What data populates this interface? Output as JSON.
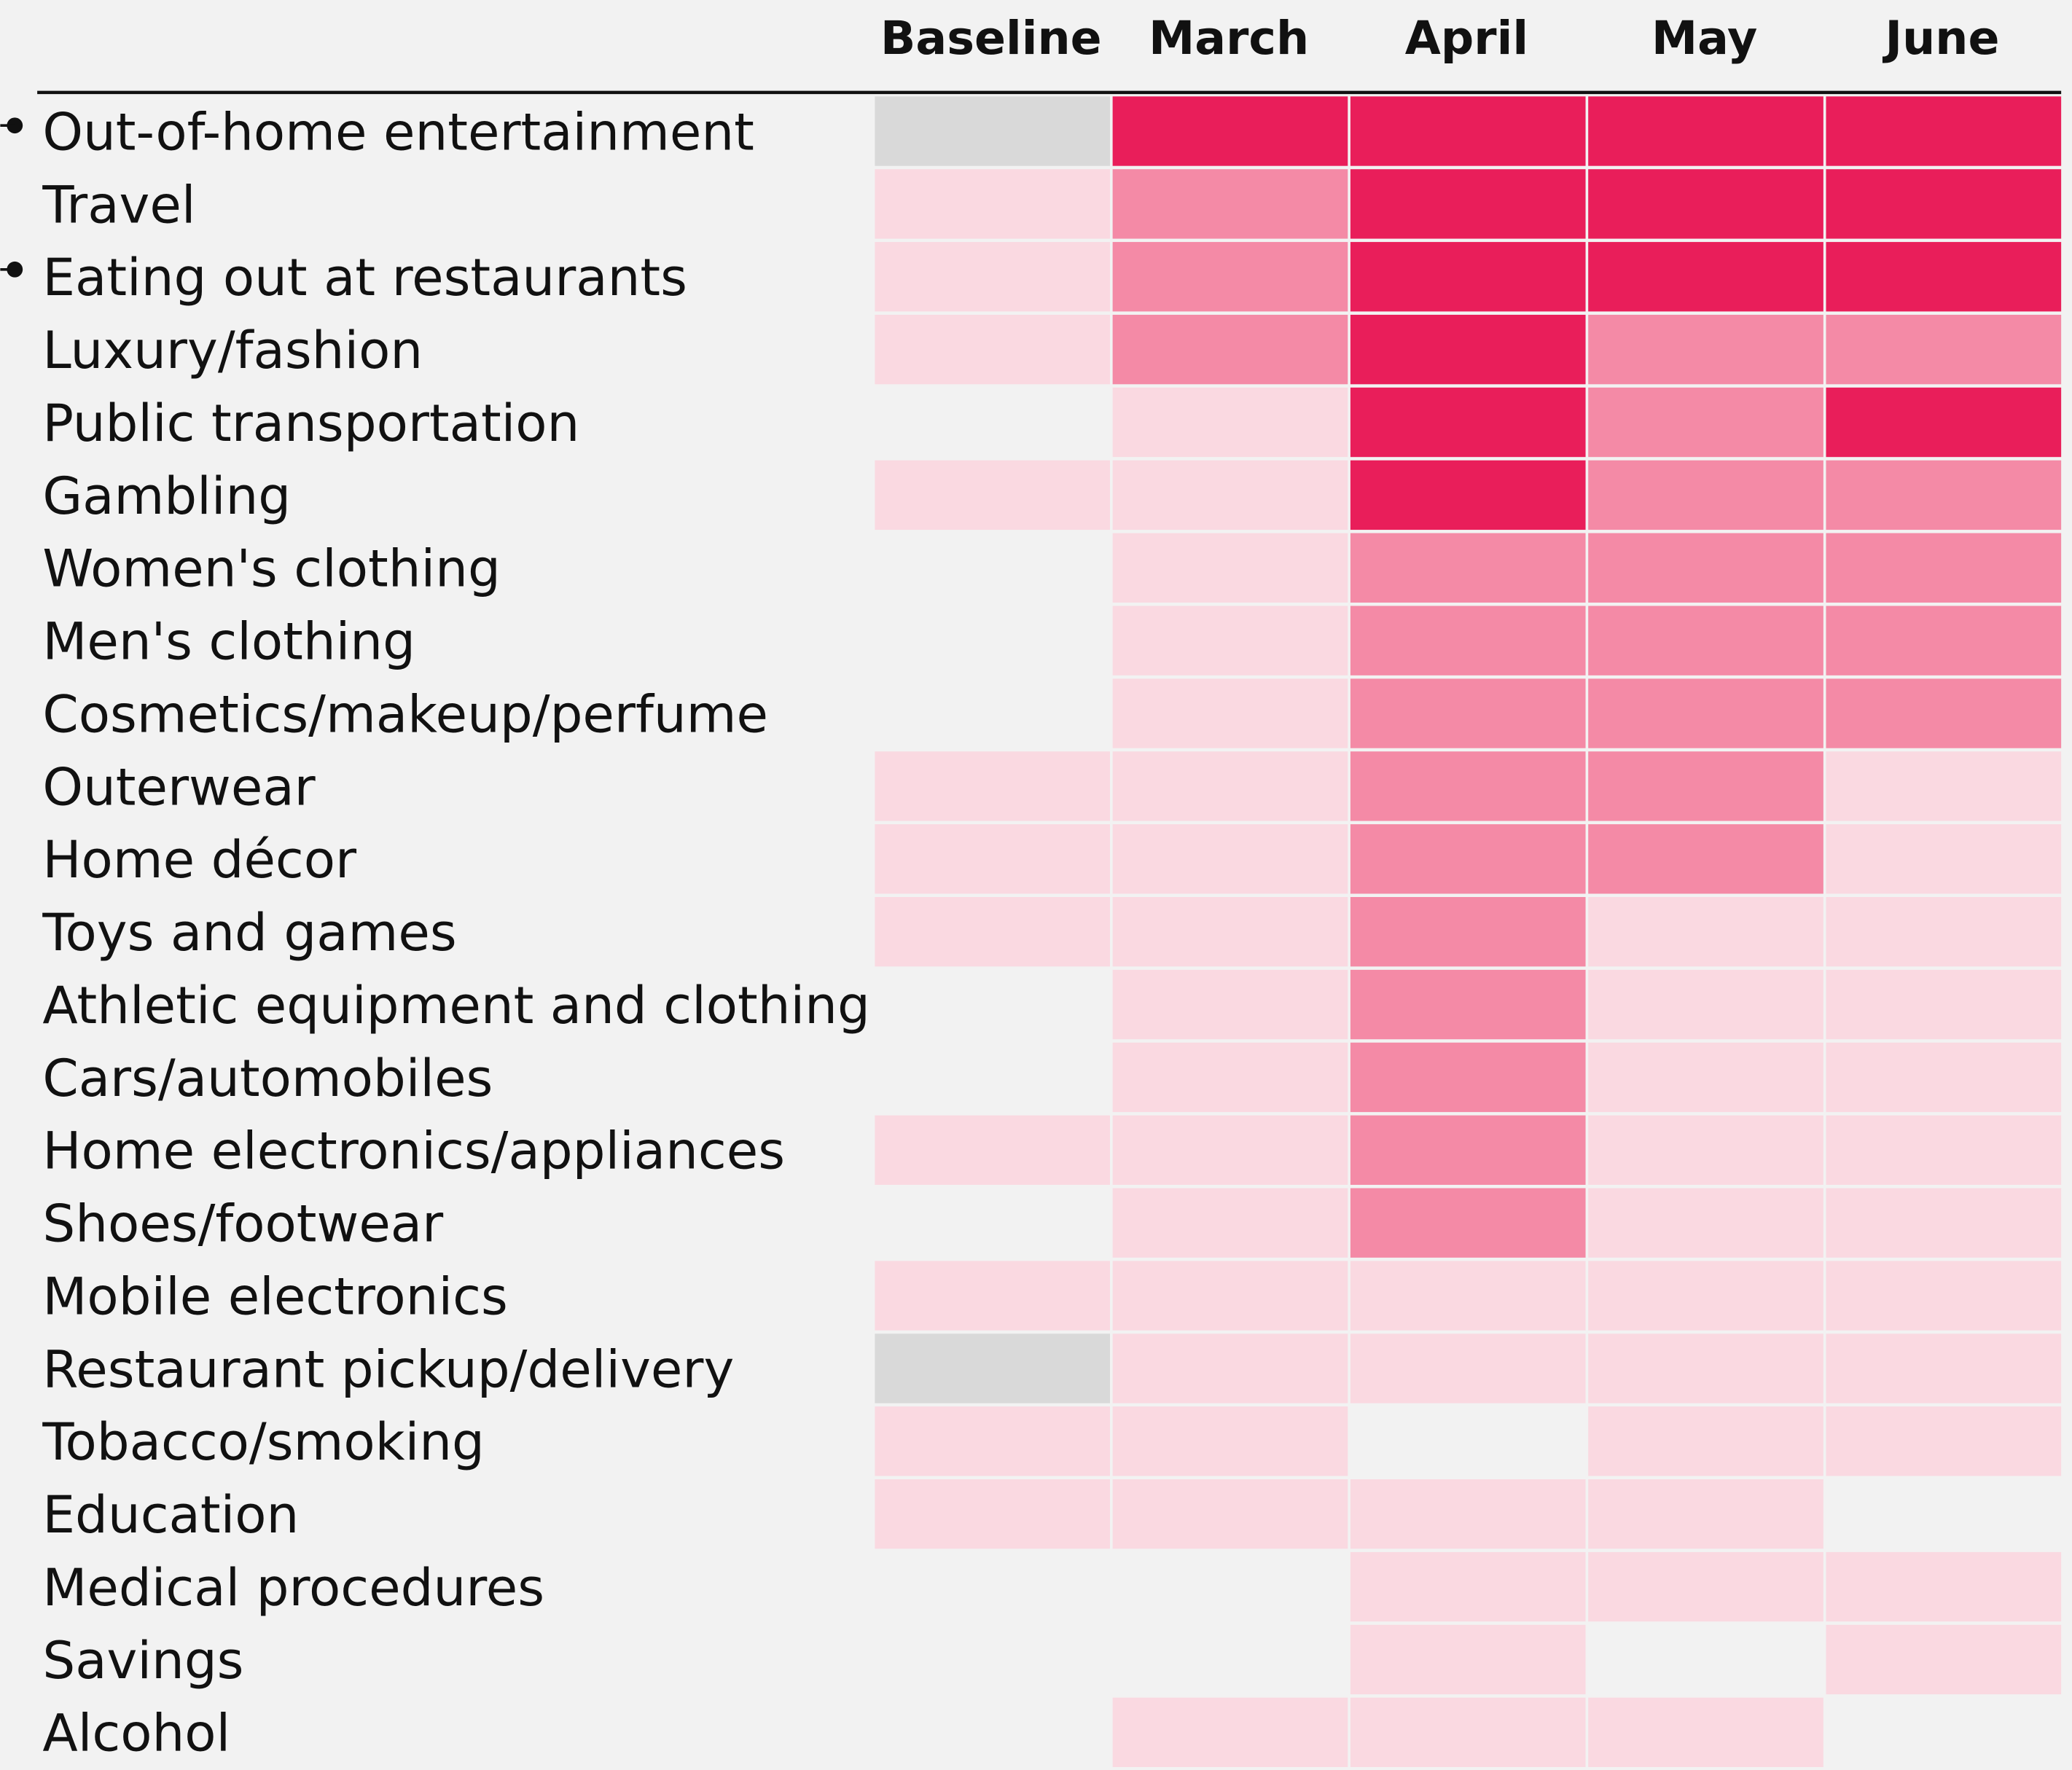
{
  "chart_data": {
    "type": "heatmap",
    "columns": [
      "Baseline",
      "March",
      "April",
      "May",
      "June"
    ],
    "rows": [
      "Out-of-home entertainment",
      "Travel",
      "Eating out at restaurants",
      "Luxury/fashion",
      "Public transportation",
      "Gambling",
      "Women's clothing",
      "Men's clothing",
      "Cosmetics/makeup/perfume",
      "Outerwear",
      "Home décor",
      "Toys and games",
      "Athletic equipment and clothing",
      "Cars/automobiles",
      "Home electronics/appliances",
      "Shoes/footwear",
      "Mobile electronics",
      "Restaurant pickup/delivery",
      "Tobacco/smoking",
      "Education",
      "Medical procedures",
      "Savings",
      "Alcohol"
    ],
    "colors": [
      [
        "#d9d9d9",
        "#e91e5a",
        "#e91e5a",
        "#e91e5a",
        "#e91e5a"
      ],
      [
        "#fad9e1",
        "#f48aa6",
        "#e91e5a",
        "#e91e5a",
        "#e91e5a"
      ],
      [
        "#fad9e1",
        "#f48aa6",
        "#e91e5a",
        "#e91e5a",
        "#e91e5a"
      ],
      [
        "#fad9e1",
        "#f48aa6",
        "#e91e5a",
        "#f48aa6",
        "#f48aa6"
      ],
      [
        null,
        "#fad9e1",
        "#e91e5a",
        "#f48aa6",
        "#e91e5a"
      ],
      [
        "#fad9e1",
        "#fad9e1",
        "#e91e5a",
        "#f48aa6",
        "#f48aa6"
      ],
      [
        null,
        "#fad9e1",
        "#f48aa6",
        "#f48aa6",
        "#f48aa6"
      ],
      [
        null,
        "#fad9e1",
        "#f48aa6",
        "#f48aa6",
        "#f48aa6"
      ],
      [
        null,
        "#fad9e1",
        "#f48aa6",
        "#f48aa6",
        "#f48aa6"
      ],
      [
        "#fad9e1",
        "#fad9e1",
        "#f48aa6",
        "#f48aa6",
        "#fad9e1"
      ],
      [
        "#fad9e1",
        "#fad9e1",
        "#f48aa6",
        "#f48aa6",
        "#fad9e1"
      ],
      [
        "#fad9e1",
        "#fad9e1",
        "#f48aa6",
        "#fad9e1",
        "#fad9e1"
      ],
      [
        null,
        "#fad9e1",
        "#f48aa6",
        "#fad9e1",
        "#fad9e1"
      ],
      [
        null,
        "#fad9e1",
        "#f48aa6",
        "#fad9e1",
        "#fad9e1"
      ],
      [
        "#fad9e1",
        "#fad9e1",
        "#f48aa6",
        "#fad9e1",
        "#fad9e1"
      ],
      [
        null,
        "#fad9e1",
        "#f48aa6",
        "#fad9e1",
        "#fad9e1"
      ],
      [
        "#fad9e1",
        "#fad9e1",
        "#fad9e1",
        "#fad9e1",
        "#fad9e1"
      ],
      [
        "#d9d9d9",
        "#fad9e1",
        "#fad9e1",
        "#fad9e1",
        "#fad9e1"
      ],
      [
        "#fad9e1",
        "#fad9e1",
        null,
        "#fad9e1",
        "#fad9e1"
      ],
      [
        "#fad9e1",
        "#fad9e1",
        "#fad9e1",
        "#fad9e1",
        null
      ],
      [
        null,
        null,
        "#fad9e1",
        "#fad9e1",
        "#fad9e1"
      ],
      [
        null,
        null,
        "#fad9e1",
        null,
        "#fad9e1"
      ],
      [
        null,
        "#fad9e1",
        "#fad9e1",
        "#fad9e1",
        null
      ]
    ]
  }
}
